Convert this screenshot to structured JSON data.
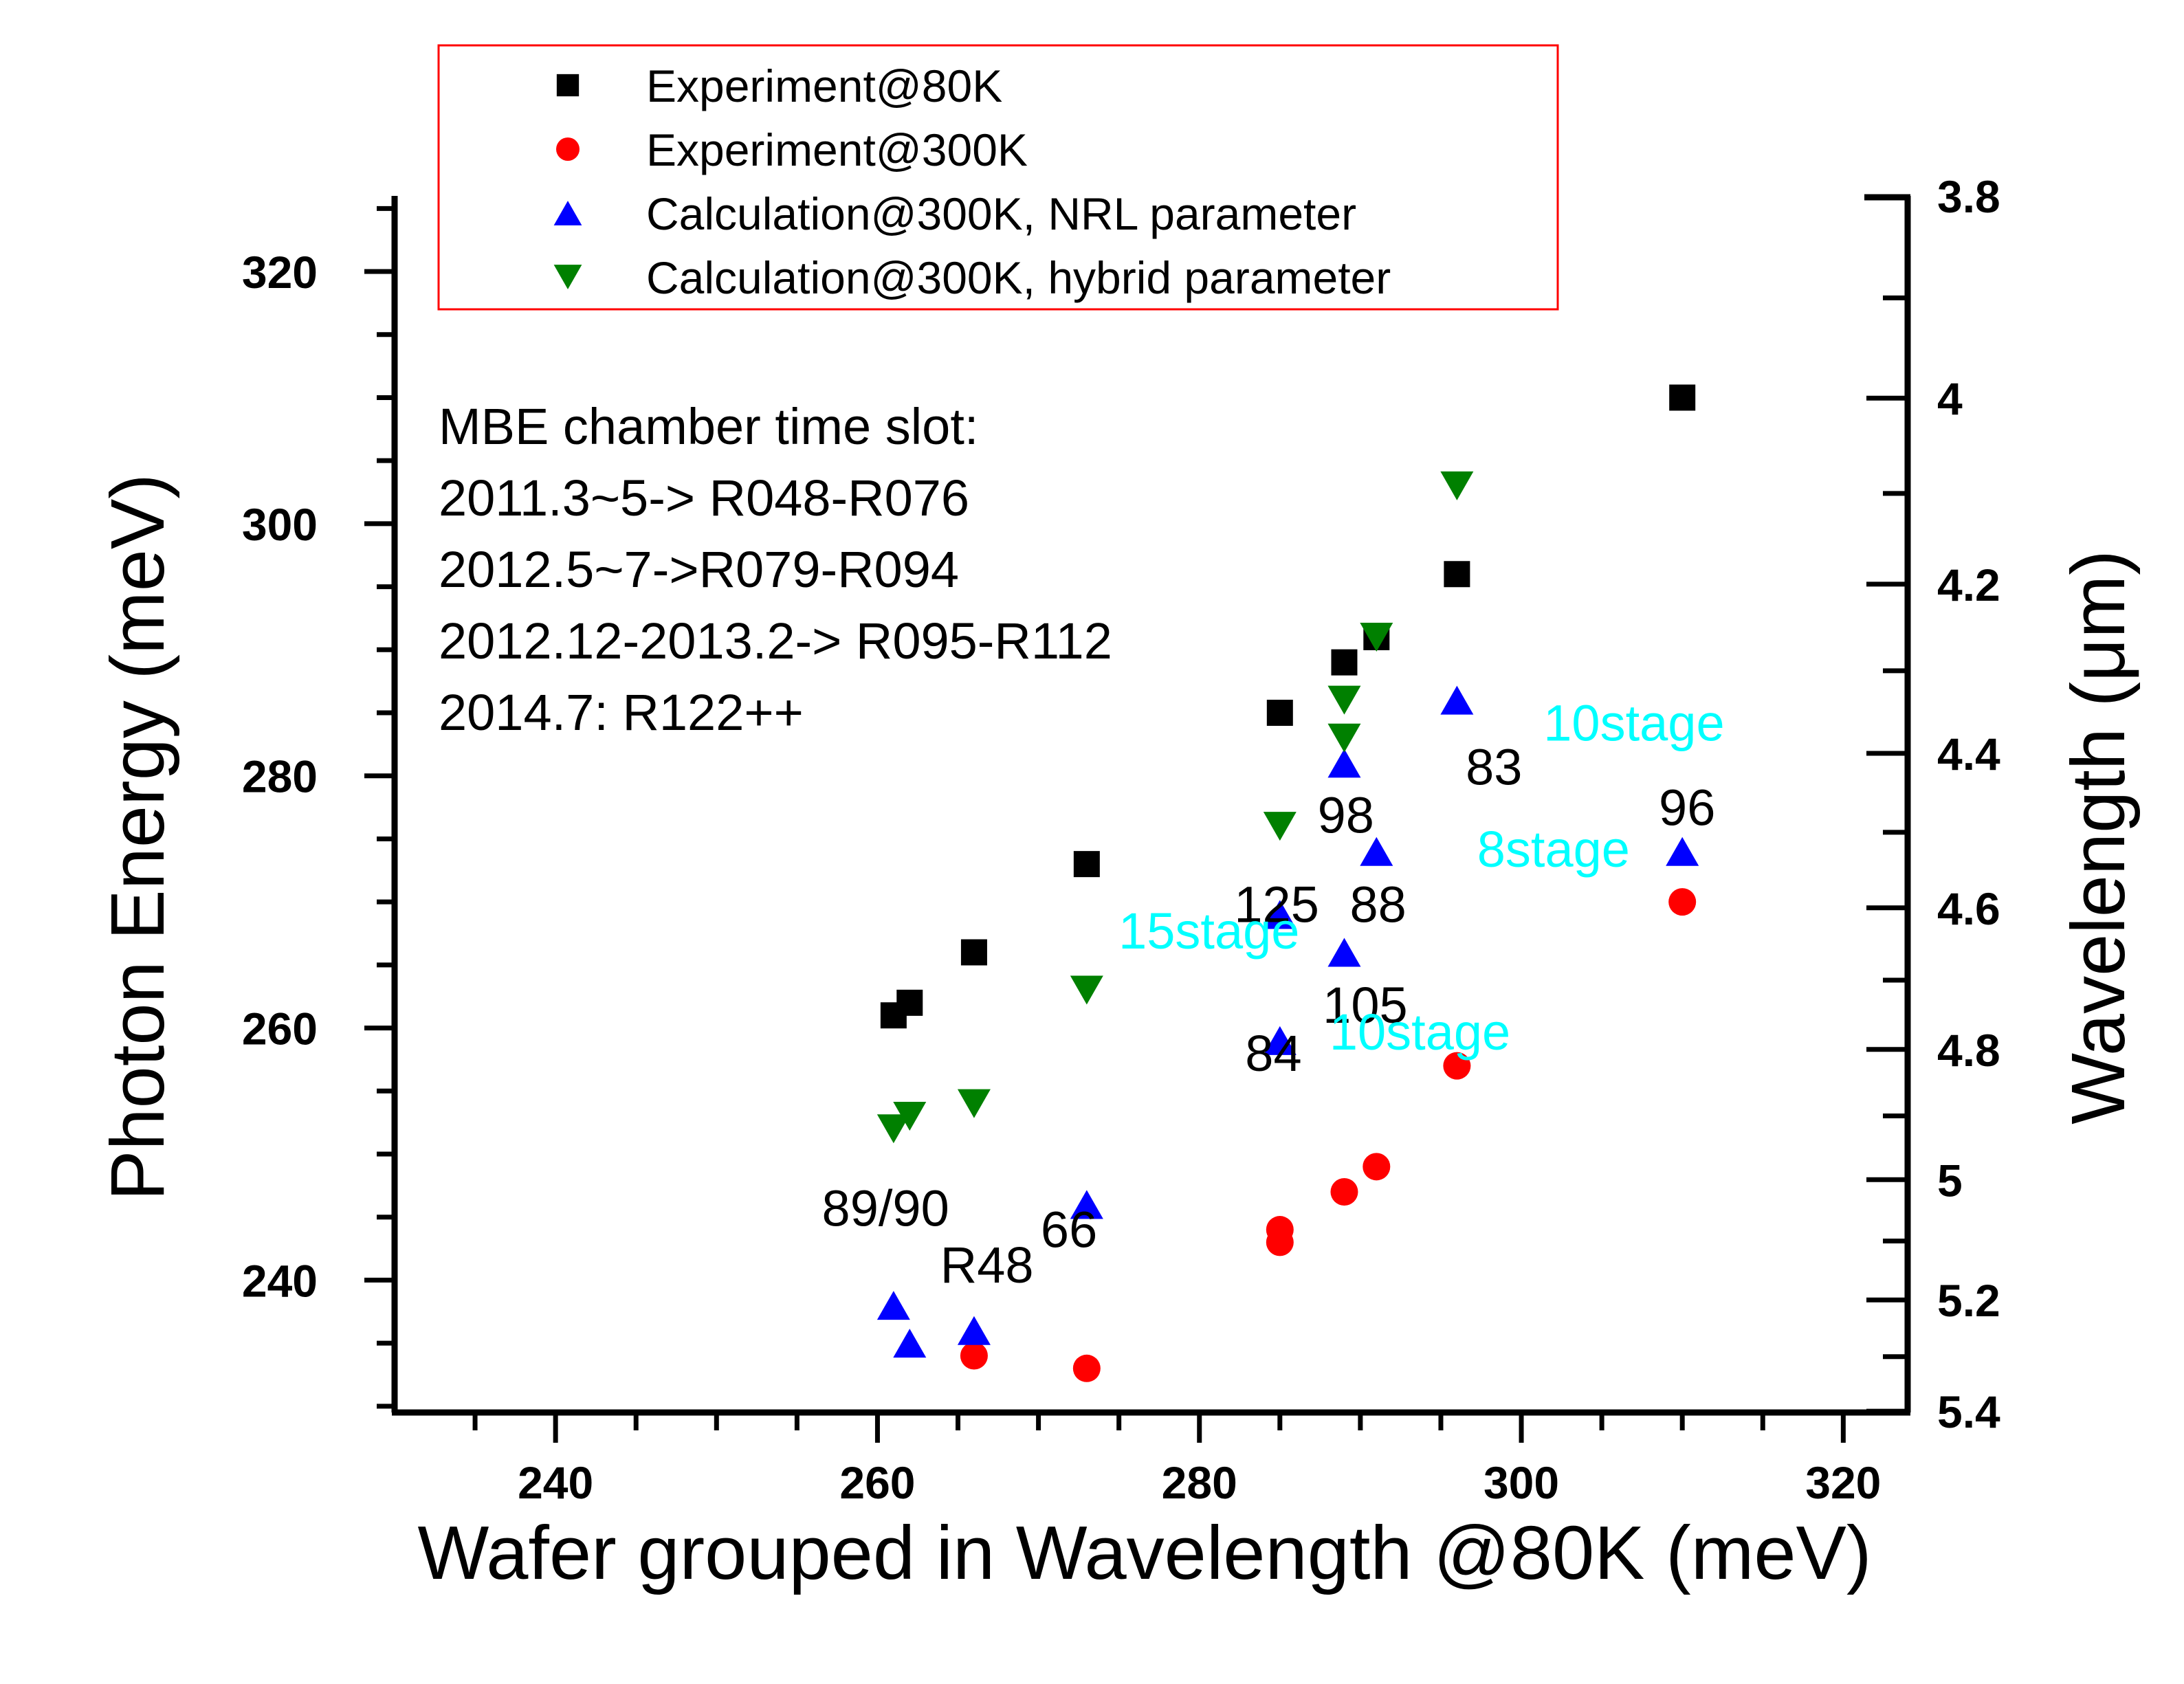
{
  "chart_data": {
    "type": "scatter",
    "xlabel": "Wafer grouped in Wavelength @80K (meV)",
    "ylabel": "Photon Energy (meV)",
    "y2label": "Wavelength (μm)",
    "xlim": [
      230,
      324
    ],
    "ylim": [
      229.5,
      326
    ],
    "x_ticks": [
      240,
      260,
      280,
      300,
      320
    ],
    "y_ticks": [
      240,
      260,
      280,
      300,
      320
    ],
    "y2_ticks": [
      3.8,
      4,
      4.2,
      4.4,
      4.6,
      4.8,
      5,
      5.2,
      5.4
    ],
    "y2_tick_labels": [
      "3.8",
      "4",
      "4.2",
      "4.4",
      "4.6",
      "4.8",
      "5",
      "5.2",
      "5.4"
    ],
    "grid": false,
    "legend_position": "top-left",
    "series": [
      {
        "name": "Experiment@80K",
        "marker": "square",
        "color": "#000000",
        "points": [
          [
            261,
            261
          ],
          [
            262,
            262
          ],
          [
            266,
            266
          ],
          [
            273,
            273
          ],
          [
            285,
            285
          ],
          [
            289,
            289
          ],
          [
            291,
            291
          ],
          [
            296,
            296
          ],
          [
            310,
            310
          ]
        ]
      },
      {
        "name": "Experiment@300K",
        "marker": "circle",
        "color": "#ff0000",
        "points": [
          [
            266,
            234
          ],
          [
            273,
            233
          ],
          [
            285,
            244
          ],
          [
            285,
            243
          ],
          [
            289,
            247
          ],
          [
            291,
            249
          ],
          [
            296,
            257
          ],
          [
            310,
            270
          ]
        ]
      },
      {
        "name": "Calculation@300K, NRL parameter",
        "marker": "triangle-up",
        "color": "#0000ff",
        "points": [
          [
            261,
            238
          ],
          [
            262,
            235
          ],
          [
            266,
            236
          ],
          [
            273,
            246
          ],
          [
            285,
            269
          ],
          [
            285,
            259
          ],
          [
            289,
            281
          ],
          [
            289,
            266
          ],
          [
            291,
            274
          ],
          [
            296,
            286
          ],
          [
            310,
            274
          ]
        ]
      },
      {
        "name": "Calculation@300K, hybrid parameter",
        "marker": "triangle-down",
        "color": "#008000",
        "points": [
          [
            261,
            252
          ],
          [
            262,
            253
          ],
          [
            266,
            254
          ],
          [
            273,
            263
          ],
          [
            285,
            276
          ],
          [
            289,
            286
          ],
          [
            289,
            283
          ],
          [
            291,
            291
          ],
          [
            296,
            303
          ]
        ]
      }
    ],
    "annotations_text": [
      "MBE chamber time slot:",
      "2011.3~5-> R048-R076",
      "2012.5~7->R079-R094",
      "2012.12-2013.2-> R095-R112",
      "2014.7: R122++"
    ],
    "labels": [
      {
        "text": "89/90",
        "x": 260.5,
        "y": 244.3,
        "color": "#000000"
      },
      {
        "text": "R48",
        "x": 266.8,
        "y": 239.8,
        "color": "#000000"
      },
      {
        "text": "66",
        "x": 271.9,
        "y": 242.6,
        "color": "#000000"
      },
      {
        "text": "125",
        "x": 284.8,
        "y": 268.4,
        "color": "#000000"
      },
      {
        "text": "98",
        "x": 289.1,
        "y": 275.5,
        "color": "#000000"
      },
      {
        "text": "88",
        "x": 291.1,
        "y": 268.4,
        "color": "#000000"
      },
      {
        "text": "105",
        "x": 290.3,
        "y": 260.4,
        "color": "#000000"
      },
      {
        "text": "84",
        "x": 284.6,
        "y": 256.6,
        "color": "#000000"
      },
      {
        "text": "83",
        "x": 298.3,
        "y": 279.3,
        "color": "#000000"
      },
      {
        "text": "96",
        "x": 310.3,
        "y": 276.1,
        "color": "#000000"
      },
      {
        "text": "15stage",
        "x": 280.6,
        "y": 266.3,
        "color": "#00ffff"
      },
      {
        "text": "10stage",
        "x": 293.7,
        "y": 258.3,
        "color": "#00ffff"
      },
      {
        "text": "8stage",
        "x": 302.0,
        "y": 272.8,
        "color": "#00ffff"
      },
      {
        "text": "10stage",
        "x": 307.0,
        "y": 282.8,
        "color": "#00ffff"
      }
    ]
  }
}
